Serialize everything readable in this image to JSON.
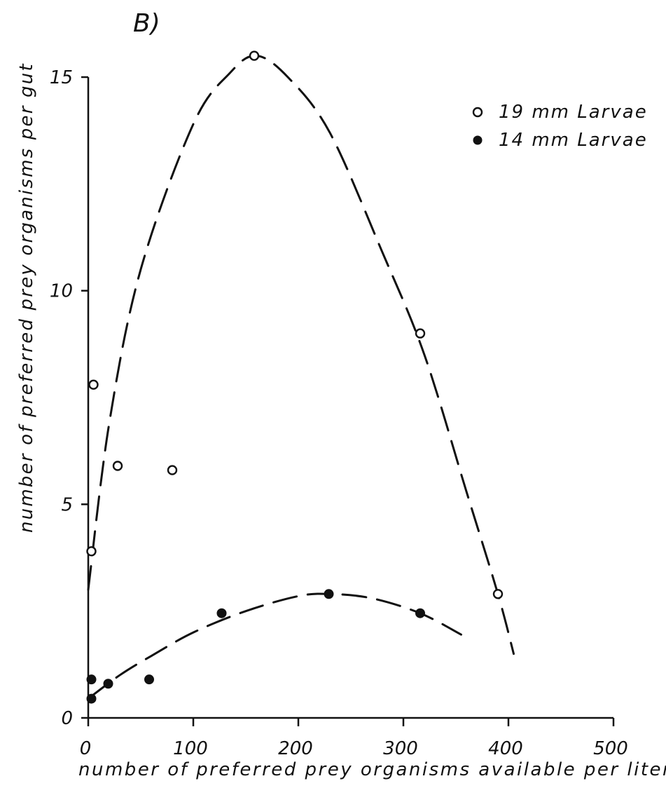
{
  "chart_data": {
    "type": "scatter",
    "panel_label": "B)",
    "xlabel": "number of preferred prey organisms available per liter",
    "ylabel": "number of preferred prey organisms per gut",
    "xlim": [
      0,
      500
    ],
    "ylim": [
      0,
      15
    ],
    "x_ticks": [
      "0",
      "100",
      "200",
      "300",
      "400",
      "500"
    ],
    "y_ticks": [
      "0",
      "5",
      "10",
      "15"
    ],
    "grid": false,
    "legend_position": "top-right",
    "series": [
      {
        "name": "19 mm Larvae",
        "marker": "open-circle",
        "points": [
          {
            "x": 3,
            "y": 3.9
          },
          {
            "x": 5,
            "y": 7.8
          },
          {
            "x": 28,
            "y": 5.9
          },
          {
            "x": 80,
            "y": 5.8
          },
          {
            "x": 158,
            "y": 15.5
          },
          {
            "x": 316,
            "y": 9.0
          },
          {
            "x": 390,
            "y": 2.9
          }
        ],
        "fit_curve": [
          {
            "x": 0,
            "y": 3.0
          },
          {
            "x": 20,
            "y": 6.9
          },
          {
            "x": 50,
            "y": 10.5
          },
          {
            "x": 100,
            "y": 13.9
          },
          {
            "x": 135,
            "y": 15.1
          },
          {
            "x": 160,
            "y": 15.5
          },
          {
            "x": 190,
            "y": 15.0
          },
          {
            "x": 230,
            "y": 13.7
          },
          {
            "x": 280,
            "y": 10.9
          },
          {
            "x": 320,
            "y": 8.5
          },
          {
            "x": 360,
            "y": 5.3
          },
          {
            "x": 390,
            "y": 2.9
          },
          {
            "x": 405,
            "y": 1.5
          }
        ]
      },
      {
        "name": "14 mm Larvae",
        "marker": "filled-circle",
        "points": [
          {
            "x": 3,
            "y": 0.9
          },
          {
            "x": 3,
            "y": 0.45
          },
          {
            "x": 19,
            "y": 0.8
          },
          {
            "x": 58,
            "y": 0.9
          },
          {
            "x": 127,
            "y": 2.45
          },
          {
            "x": 229,
            "y": 2.9
          },
          {
            "x": 316,
            "y": 2.45
          }
        ],
        "fit_curve": [
          {
            "x": 0,
            "y": 0.45
          },
          {
            "x": 30,
            "y": 1.0
          },
          {
            "x": 60,
            "y": 1.45
          },
          {
            "x": 100,
            "y": 2.0
          },
          {
            "x": 150,
            "y": 2.5
          },
          {
            "x": 200,
            "y": 2.85
          },
          {
            "x": 230,
            "y": 2.9
          },
          {
            "x": 270,
            "y": 2.8
          },
          {
            "x": 316,
            "y": 2.45
          },
          {
            "x": 355,
            "y": 1.95
          }
        ]
      }
    ]
  }
}
